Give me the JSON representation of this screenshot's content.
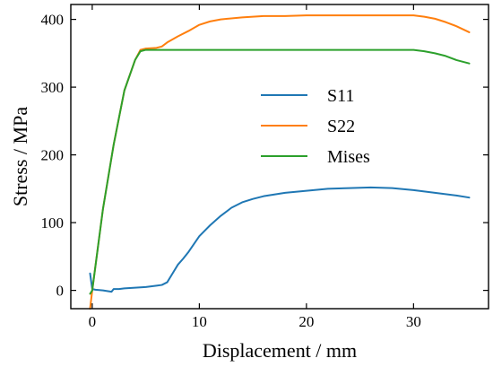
{
  "chart_data": {
    "type": "line",
    "xlabel": "Displacement / mm",
    "ylabel": "Stress / MPa",
    "xlim": [
      -2,
      37
    ],
    "ylim": [
      -27,
      422
    ],
    "xticks": [
      0,
      10,
      20,
      30
    ],
    "yticks": [
      0,
      100,
      200,
      300,
      400
    ],
    "legend_position": "center-right",
    "grid": false,
    "series": [
      {
        "name": "S11",
        "color": "#1f77b4",
        "x": [
          -0.2,
          0,
          0.3,
          1.0,
          1.8,
          2.0,
          2.5,
          3.0,
          4.0,
          5.0,
          6.0,
          6.5,
          7.0,
          7.5,
          8.0,
          8.5,
          9.0,
          10.0,
          11.0,
          12.0,
          13.0,
          14.0,
          15.0,
          16.0,
          18.0,
          20.0,
          22.0,
          24.0,
          26.0,
          28.0,
          30.0,
          32.0,
          34.0,
          35.2
        ],
        "y": [
          25,
          2,
          1,
          0,
          -2,
          2,
          2,
          3,
          4,
          5,
          7,
          8,
          12,
          25,
          38,
          47,
          57,
          80,
          96,
          110,
          122,
          130,
          135,
          139,
          144,
          147,
          150,
          151,
          152,
          151,
          148,
          144,
          140,
          137
        ]
      },
      {
        "name": "S22",
        "color": "#ff7f0e",
        "x": [
          -0.2,
          0,
          0.5,
          1,
          2,
          3,
          4,
          4.5,
          5,
          6,
          6.5,
          7,
          8,
          9,
          10,
          11,
          12,
          14,
          16,
          18,
          20,
          25,
          30,
          31,
          32,
          33,
          34,
          35.2
        ],
        "y": [
          -27,
          0,
          60,
          120,
          215,
          295,
          340,
          355,
          357,
          358,
          360,
          366,
          375,
          383,
          392,
          397,
          400,
          403,
          405,
          405,
          406,
          406,
          406,
          404,
          401,
          396,
          390,
          381
        ]
      },
      {
        "name": "Mises",
        "color": "#2ca02c",
        "x": [
          -0.2,
          0,
          0.5,
          1,
          2,
          3,
          4,
          4.5,
          5,
          10,
          15,
          20,
          25,
          30,
          31,
          32,
          33,
          34,
          35.2
        ],
        "y": [
          -5,
          0,
          60,
          120,
          215,
          295,
          340,
          353,
          355,
          355,
          355,
          355,
          355,
          355,
          353,
          350,
          346,
          340,
          335
        ]
      }
    ]
  }
}
